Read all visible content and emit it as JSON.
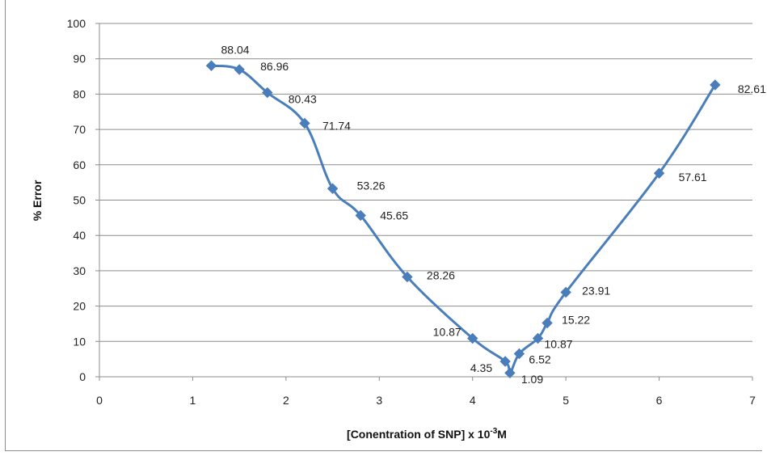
{
  "chart_data": {
    "type": "line",
    "x": [
      1.2,
      1.5,
      1.8,
      2.2,
      2.5,
      2.8,
      3.3,
      4.0,
      4.35,
      4.4,
      4.5,
      4.7,
      4.8,
      5.0,
      6.0,
      6.6
    ],
    "series": [
      {
        "values": [
          88.04,
          86.96,
          80.43,
          71.74,
          53.26,
          45.65,
          28.26,
          10.87,
          4.35,
          1.09,
          6.52,
          10.87,
          15.22,
          23.91,
          57.61,
          82.61
        ],
        "labels": [
          "88.04",
          "86.96",
          "80.43",
          "71.74",
          "53.26",
          "45.65",
          "28.26",
          "10.87",
          "4.35",
          "1.09",
          "6.52",
          "10.87",
          "15.22",
          "23.91",
          "57.61",
          "82.61"
        ],
        "color": "#4a7ebb",
        "marker": "diamond"
      }
    ],
    "xlim": [
      0,
      7
    ],
    "ylim": [
      0,
      100
    ],
    "xticks": [
      "0",
      "1",
      "2",
      "3",
      "4",
      "5",
      "6",
      "7"
    ],
    "yticks": [
      "0",
      "10",
      "20",
      "30",
      "40",
      "50",
      "60",
      "70",
      "80",
      "90",
      "100"
    ],
    "xlabel": {
      "prefix": "[Conentration of SNP] x 10",
      "superscript": "-3",
      "suffix": "M"
    },
    "ylabel": "% Error",
    "grid": true,
    "colors": {
      "line": "#4a7ebb",
      "grid": "#8c8c8c",
      "axis": "#8c8c8c"
    }
  }
}
